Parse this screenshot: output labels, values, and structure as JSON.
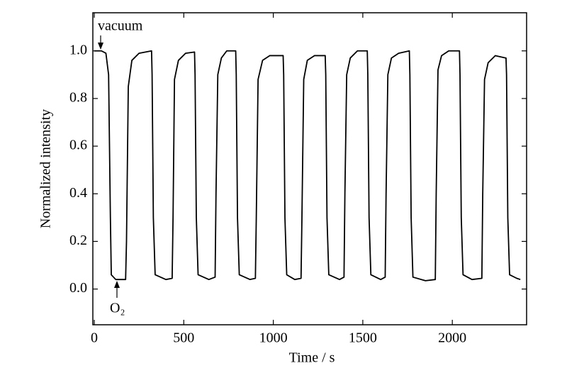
{
  "chart_data": {
    "type": "line",
    "x_label": "Time / s",
    "y_label": "Normalized intensity",
    "annotations": [
      "vacuum",
      "O₂"
    ],
    "xlim": [
      -8,
      2415
    ],
    "ylim": [
      -0.15,
      1.16
    ],
    "xticks": [
      0,
      500,
      1000,
      1500,
      2000
    ],
    "yticks": [
      {
        "value": 0,
        "label": "0.0"
      },
      {
        "value": 0.2,
        "label": "0.2"
      },
      {
        "value": 0.4,
        "label": "0.4"
      },
      {
        "value": 0.6,
        "label": "0.6"
      },
      {
        "value": 0.8,
        "label": "0.8"
      },
      {
        "value": 1,
        "label": "1.0"
      }
    ],
    "grid": false,
    "color": "#000000",
    "x": [
      0,
      40,
      65,
      80,
      90,
      95,
      120,
      175,
      180,
      190,
      210,
      250,
      320,
      323,
      330,
      340,
      400,
      435,
      440,
      448,
      470,
      510,
      560,
      563,
      570,
      580,
      640,
      675,
      680,
      690,
      710,
      740,
      790,
      793,
      800,
      810,
      870,
      900,
      905,
      915,
      940,
      980,
      1055,
      1058,
      1065,
      1075,
      1120,
      1155,
      1160,
      1170,
      1190,
      1230,
      1290,
      1293,
      1300,
      1310,
      1370,
      1395,
      1400,
      1410,
      1430,
      1470,
      1525,
      1528,
      1535,
      1545,
      1600,
      1625,
      1630,
      1640,
      1660,
      1700,
      1760,
      1763,
      1770,
      1780,
      1850,
      1905,
      1910,
      1920,
      1940,
      1980,
      2040,
      2043,
      2050,
      2060,
      2110,
      2165,
      2170,
      2180,
      2200,
      2240,
      2300,
      2303,
      2310,
      2320,
      2360,
      2380
    ],
    "values": [
      1.0,
      1.0,
      0.99,
      0.9,
      0.3,
      0.06,
      0.04,
      0.04,
      0.2,
      0.85,
      0.96,
      0.99,
      1.0,
      0.9,
      0.3,
      0.06,
      0.04,
      0.045,
      0.3,
      0.88,
      0.96,
      0.99,
      0.995,
      0.9,
      0.3,
      0.06,
      0.04,
      0.05,
      0.4,
      0.9,
      0.97,
      1.0,
      1.0,
      0.9,
      0.3,
      0.06,
      0.04,
      0.045,
      0.3,
      0.88,
      0.96,
      0.98,
      0.98,
      0.9,
      0.3,
      0.06,
      0.04,
      0.045,
      0.3,
      0.88,
      0.96,
      0.98,
      0.98,
      0.9,
      0.3,
      0.06,
      0.04,
      0.05,
      0.4,
      0.9,
      0.97,
      1.0,
      1.0,
      0.9,
      0.3,
      0.06,
      0.04,
      0.05,
      0.4,
      0.9,
      0.97,
      0.99,
      1.0,
      0.9,
      0.3,
      0.05,
      0.035,
      0.04,
      0.4,
      0.92,
      0.98,
      1.0,
      1.0,
      0.9,
      0.3,
      0.06,
      0.04,
      0.045,
      0.4,
      0.88,
      0.95,
      0.98,
      0.97,
      0.9,
      0.3,
      0.06,
      0.045,
      0.04
    ]
  }
}
